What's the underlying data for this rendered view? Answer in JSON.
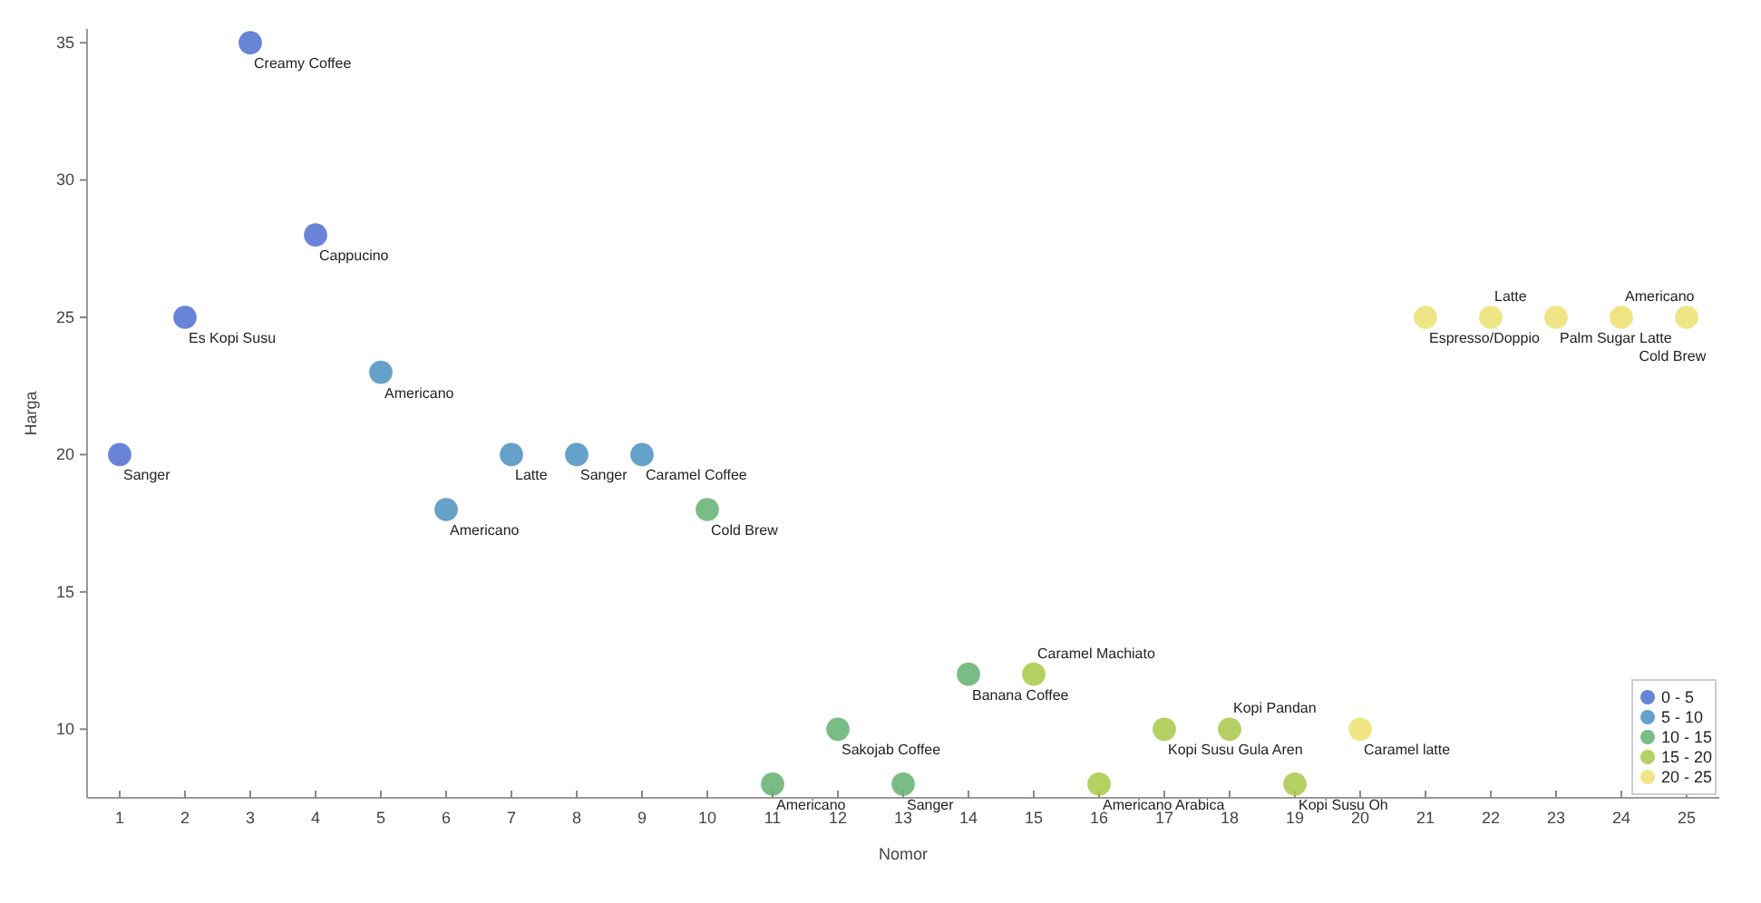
{
  "chart_data": {
    "type": "scatter",
    "xlabel": "Nomor",
    "ylabel": "Harga",
    "xlim": [
      0.5,
      25.5
    ],
    "ylim": [
      7.5,
      35.5
    ],
    "xticks": [
      1,
      2,
      3,
      4,
      5,
      6,
      7,
      8,
      9,
      10,
      11,
      12,
      13,
      14,
      15,
      16,
      17,
      18,
      19,
      20,
      21,
      22,
      23,
      24,
      25
    ],
    "yticks": [
      10,
      15,
      20,
      25,
      30,
      35
    ],
    "grid": false,
    "legend": "bottom right",
    "marker": "circle",
    "series": [
      {
        "name": "0 - 5",
        "color": "#4f6fd0",
        "x": [
          1,
          2,
          3,
          4
        ],
        "values": [
          20,
          25,
          35,
          28
        ]
      },
      {
        "name": "5 - 10",
        "color": "#4a90c0",
        "x": [
          5,
          6,
          7,
          8,
          9
        ],
        "values": [
          23,
          18,
          20,
          20,
          20
        ]
      },
      {
        "name": "10 - 15",
        "color": "#62b070",
        "x": [
          10,
          11,
          12,
          13,
          14
        ],
        "values": [
          18,
          8,
          10,
          8,
          12
        ]
      },
      {
        "name": "15 - 20",
        "color": "#a8c848",
        "x": [
          15,
          16,
          17,
          18,
          19
        ],
        "values": [
          12,
          8,
          10,
          10,
          8
        ]
      },
      {
        "name": "20 - 25",
        "color": "#ece070",
        "x": [
          20,
          21,
          22,
          23,
          24,
          25
        ],
        "values": [
          10,
          25,
          25,
          25,
          25,
          25
        ]
      }
    ],
    "annotations": [
      {
        "text": "Sanger",
        "x": 1,
        "y": 20
      },
      {
        "text": "Es Kopi Susu",
        "x": 2,
        "y": 25
      },
      {
        "text": "Creamy Coffee",
        "x": 3,
        "y": 35
      },
      {
        "text": "Cappucino",
        "x": 4,
        "y": 28
      },
      {
        "text": "Americano",
        "x": 5,
        "y": 23
      },
      {
        "text": "Americano",
        "x": 6,
        "y": 18
      },
      {
        "text": "Latte",
        "x": 7,
        "y": 20
      },
      {
        "text": "Sanger",
        "x": 8,
        "y": 20
      },
      {
        "text": "Caramel Coffee",
        "x": 9,
        "y": 20
      },
      {
        "text": "Cold Brew",
        "x": 10,
        "y": 18
      },
      {
        "text": "Americano",
        "x": 11,
        "y": 8
      },
      {
        "text": "Sakojab Coffee",
        "x": 12,
        "y": 10
      },
      {
        "text": "Sanger",
        "x": 13,
        "y": 8
      },
      {
        "text": "Banana Coffee",
        "x": 14,
        "y": 12
      },
      {
        "text": "Caramel Machiato",
        "x": 15,
        "y": 12
      },
      {
        "text": "Americano Arabica",
        "x": 16,
        "y": 8
      },
      {
        "text": "Kopi Susu Gula Aren",
        "x": 17,
        "y": 10
      },
      {
        "text": "Kopi Pandan",
        "x": 18,
        "y": 10
      },
      {
        "text": "Kopi Susu Oh",
        "x": 19,
        "y": 8
      },
      {
        "text": "Caramel latte",
        "x": 20,
        "y": 10
      },
      {
        "text": "Espresso/Doppio",
        "x": 21,
        "y": 25
      },
      {
        "text": "Latte",
        "x": 22,
        "y": 25
      },
      {
        "text": "Palm Sugar Latte",
        "x": 23,
        "y": 25
      },
      {
        "text": "Americano",
        "x": 24,
        "y": 25
      },
      {
        "text": "Cold Brew",
        "x": 25,
        "y": 25
      }
    ]
  }
}
